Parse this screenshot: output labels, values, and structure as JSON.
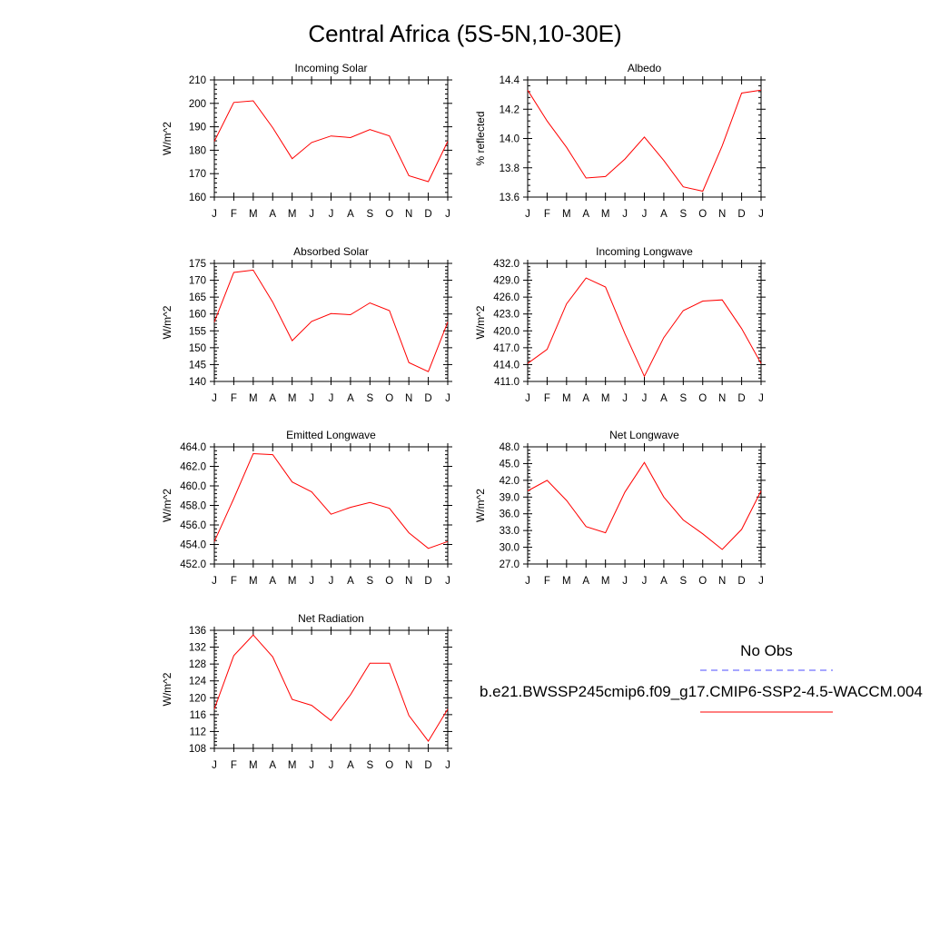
{
  "figure": {
    "title": "Central Africa (5S-5N,10-30E)"
  },
  "legend": {
    "obs_label": "No Obs",
    "model_label": "b.e21.BWSSP245cmip6.f09_g17.CMIP6-SSP2-4.5-WACCM.004",
    "obs_color": "#4d4dff",
    "model_color": "#ff0000"
  },
  "chart_data": [
    {
      "type": "line",
      "title": "Incoming Solar",
      "ylabel": "W/m^2",
      "ylim": [
        160,
        210
      ],
      "yticks": [
        160,
        170,
        180,
        190,
        200,
        210
      ],
      "ytick_labels": [
        "160",
        "170",
        "180",
        "190",
        "200",
        "210"
      ],
      "categories": [
        "J",
        "F",
        "M",
        "A",
        "M",
        "J",
        "J",
        "A",
        "S",
        "O",
        "N",
        "D",
        "J"
      ],
      "values": [
        183.8,
        200.4,
        201.1,
        189.6,
        176.4,
        183.3,
        186.1,
        185.4,
        188.8,
        186.1,
        169.1,
        166.6,
        183.8
      ],
      "color": "#ff0000"
    },
    {
      "type": "line",
      "title": "Albedo",
      "ylabel": "% reflected",
      "ylim": [
        13.6,
        14.4
      ],
      "yticks": [
        13.6,
        13.8,
        14.0,
        14.2,
        14.4
      ],
      "ytick_labels": [
        "13.6",
        "13.8",
        "14.0",
        "14.2",
        "14.4"
      ],
      "categories": [
        "J",
        "F",
        "M",
        "A",
        "M",
        "J",
        "J",
        "A",
        "S",
        "O",
        "N",
        "D",
        "J"
      ],
      "values": [
        14.33,
        14.12,
        13.94,
        13.73,
        13.74,
        13.86,
        14.01,
        13.85,
        13.67,
        13.64,
        13.95,
        14.31,
        14.33
      ],
      "color": "#ff0000"
    },
    {
      "type": "line",
      "title": "Absorbed Solar",
      "ylabel": "W/m^2",
      "ylim": [
        140,
        175
      ],
      "yticks": [
        140,
        145,
        150,
        155,
        160,
        165,
        170,
        175
      ],
      "ytick_labels": [
        "140",
        "145",
        "150",
        "155",
        "160",
        "165",
        "170",
        "175"
      ],
      "categories": [
        "J",
        "F",
        "M",
        "A",
        "M",
        "J",
        "J",
        "A",
        "S",
        "O",
        "N",
        "D",
        "J"
      ],
      "values": [
        157.6,
        172.3,
        173.0,
        163.5,
        152.1,
        157.8,
        160.1,
        159.8,
        163.3,
        161.0,
        145.6,
        142.9,
        157.6
      ],
      "color": "#ff0000"
    },
    {
      "type": "line",
      "title": "Incoming Longwave",
      "ylabel": "W/m^2",
      "ylim": [
        411.0,
        432.0
      ],
      "yticks": [
        411.0,
        414.0,
        417.0,
        420.0,
        423.0,
        426.0,
        429.0,
        432.0
      ],
      "ytick_labels": [
        "411.0",
        "414.0",
        "417.0",
        "420.0",
        "423.0",
        "426.0",
        "429.0",
        "432.0"
      ],
      "categories": [
        "J",
        "F",
        "M",
        "A",
        "M",
        "J",
        "J",
        "A",
        "S",
        "O",
        "N",
        "D",
        "J"
      ],
      "values": [
        414.2,
        416.7,
        424.8,
        429.4,
        427.8,
        419.5,
        411.9,
        418.8,
        423.6,
        425.3,
        425.5,
        420.4,
        414.2
      ],
      "color": "#ff0000"
    },
    {
      "type": "line",
      "title": "Emitted Longwave",
      "ylabel": "W/m^2",
      "ylim": [
        452.0,
        464.0
      ],
      "yticks": [
        452.0,
        454.0,
        456.0,
        458.0,
        460.0,
        462.0,
        464.0
      ],
      "ytick_labels": [
        "452.0",
        "454.0",
        "456.0",
        "458.0",
        "460.0",
        "462.0",
        "464.0"
      ],
      "categories": [
        "J",
        "F",
        "M",
        "A",
        "M",
        "J",
        "J",
        "A",
        "S",
        "O",
        "N",
        "D",
        "J"
      ],
      "values": [
        454.3,
        458.7,
        463.3,
        463.2,
        460.4,
        459.4,
        457.1,
        457.8,
        458.3,
        457.7,
        455.2,
        453.6,
        454.3
      ],
      "color": "#ff0000"
    },
    {
      "type": "line",
      "title": "Net Longwave",
      "ylabel": "W/m^2",
      "ylim": [
        27.0,
        48.0
      ],
      "yticks": [
        27.0,
        30.0,
        33.0,
        36.0,
        39.0,
        42.0,
        45.0,
        48.0
      ],
      "ytick_labels": [
        "27.0",
        "30.0",
        "33.0",
        "36.0",
        "39.0",
        "42.0",
        "45.0",
        "48.0"
      ],
      "categories": [
        "J",
        "F",
        "M",
        "A",
        "M",
        "J",
        "J",
        "A",
        "S",
        "O",
        "N",
        "D",
        "J"
      ],
      "values": [
        40.1,
        42.0,
        38.4,
        33.7,
        32.6,
        39.9,
        45.2,
        39.0,
        34.9,
        32.4,
        29.6,
        33.2,
        40.1
      ],
      "color": "#ff0000"
    },
    {
      "type": "line",
      "title": "Net Radiation",
      "ylabel": "W/m^2",
      "ylim": [
        108,
        136
      ],
      "yticks": [
        108,
        112,
        116,
        120,
        124,
        128,
        132,
        136
      ],
      "ytick_labels": [
        "108",
        "112",
        "116",
        "120",
        "124",
        "128",
        "132",
        "136"
      ],
      "categories": [
        "J",
        "F",
        "M",
        "A",
        "M",
        "J",
        "J",
        "A",
        "S",
        "O",
        "N",
        "D",
        "J"
      ],
      "values": [
        117.3,
        130.0,
        134.9,
        129.7,
        119.6,
        118.2,
        114.6,
        120.7,
        128.2,
        128.2,
        115.8,
        109.7,
        117.3
      ],
      "color": "#ff0000"
    }
  ]
}
